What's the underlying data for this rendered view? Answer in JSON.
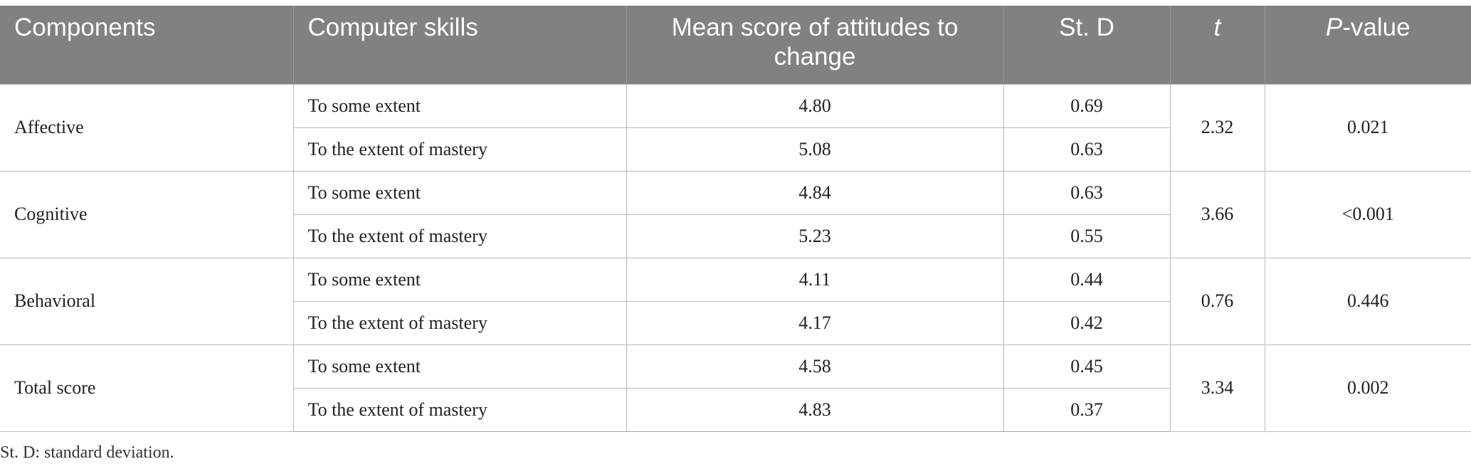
{
  "table": {
    "headers": {
      "components": "Components",
      "computer_skills": "Computer skills",
      "mean_score": "Mean score of attitudes to change",
      "std": "St. D",
      "t": "t",
      "p_italic": "P",
      "p_rest": "-value"
    },
    "groups": [
      {
        "component": "Affective",
        "t": "2.32",
        "p": "0.021",
        "rows": [
          {
            "skill": "To some extent",
            "mean": "4.80",
            "sd": "0.69"
          },
          {
            "skill": "To the extent of mastery",
            "mean": "5.08",
            "sd": "0.63"
          }
        ]
      },
      {
        "component": "Cognitive",
        "t": "3.66",
        "p": "<0.001",
        "rows": [
          {
            "skill": "To some extent",
            "mean": "4.84",
            "sd": "0.63"
          },
          {
            "skill": "To the extent of mastery",
            "mean": "5.23",
            "sd": "0.55"
          }
        ]
      },
      {
        "component": "Behavioral",
        "t": "0.76",
        "p": "0.446",
        "rows": [
          {
            "skill": "To some extent",
            "mean": "4.11",
            "sd": "0.44"
          },
          {
            "skill": "To the extent of mastery",
            "mean": "4.17",
            "sd": "0.42"
          }
        ]
      },
      {
        "component": "Total score",
        "t": "3.34",
        "p": "0.002",
        "rows": [
          {
            "skill": "To some extent",
            "mean": "4.58",
            "sd": "0.45"
          },
          {
            "skill": "To the extent of mastery",
            "mean": "4.83",
            "sd": "0.37"
          }
        ]
      }
    ]
  },
  "footnote": "St. D: standard deviation.",
  "colors": {
    "header_bg": "#808281",
    "header_text": "#ffffff",
    "grid_line": "#b9b9b9"
  }
}
